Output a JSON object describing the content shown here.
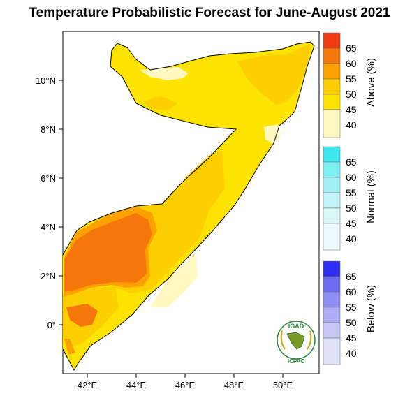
{
  "title": "Temperature Probabilistic Forecast for June-August 2021",
  "map": {
    "lat_ticks": [
      "10°N",
      "8°N",
      "6°N",
      "4°N",
      "2°N",
      "0°"
    ],
    "lon_ticks": [
      "42°E",
      "44°E",
      "46°E",
      "48°E",
      "50°E"
    ],
    "colors": {
      "above_40": "#fff8c0",
      "above_45": "#fde300",
      "above_50": "#fdce00",
      "above_55": "#fba200",
      "above_60": "#f5760a",
      "above_65": "#f23a12"
    }
  },
  "legend": {
    "above": {
      "title": "Above (%)",
      "labels": [
        "65",
        "60",
        "55",
        "50",
        "45",
        "40"
      ],
      "colors": [
        "#f23a12",
        "#f5760a",
        "#fba200",
        "#fdce00",
        "#fde300",
        "#fff8c0"
      ]
    },
    "normal": {
      "title": "Normal (%)",
      "labels": [
        "65",
        "60",
        "55",
        "50",
        "45",
        "40"
      ],
      "colors": [
        "#3fe8f0",
        "#7ef0f4",
        "#a2f2f5",
        "#c2f5f7",
        "#dbf8f9",
        "#edfbfc"
      ]
    },
    "below": {
      "title": "Below (%)",
      "labels": [
        "65",
        "60",
        "55",
        "50",
        "45",
        "40"
      ],
      "colors": [
        "#2e2ef0",
        "#6b6bf2",
        "#8e8ef4",
        "#aeaef6",
        "#c8c8f8",
        "#e2e2fa"
      ]
    }
  },
  "logo": {
    "top": "IGAD",
    "bottom": "ICPAC"
  }
}
